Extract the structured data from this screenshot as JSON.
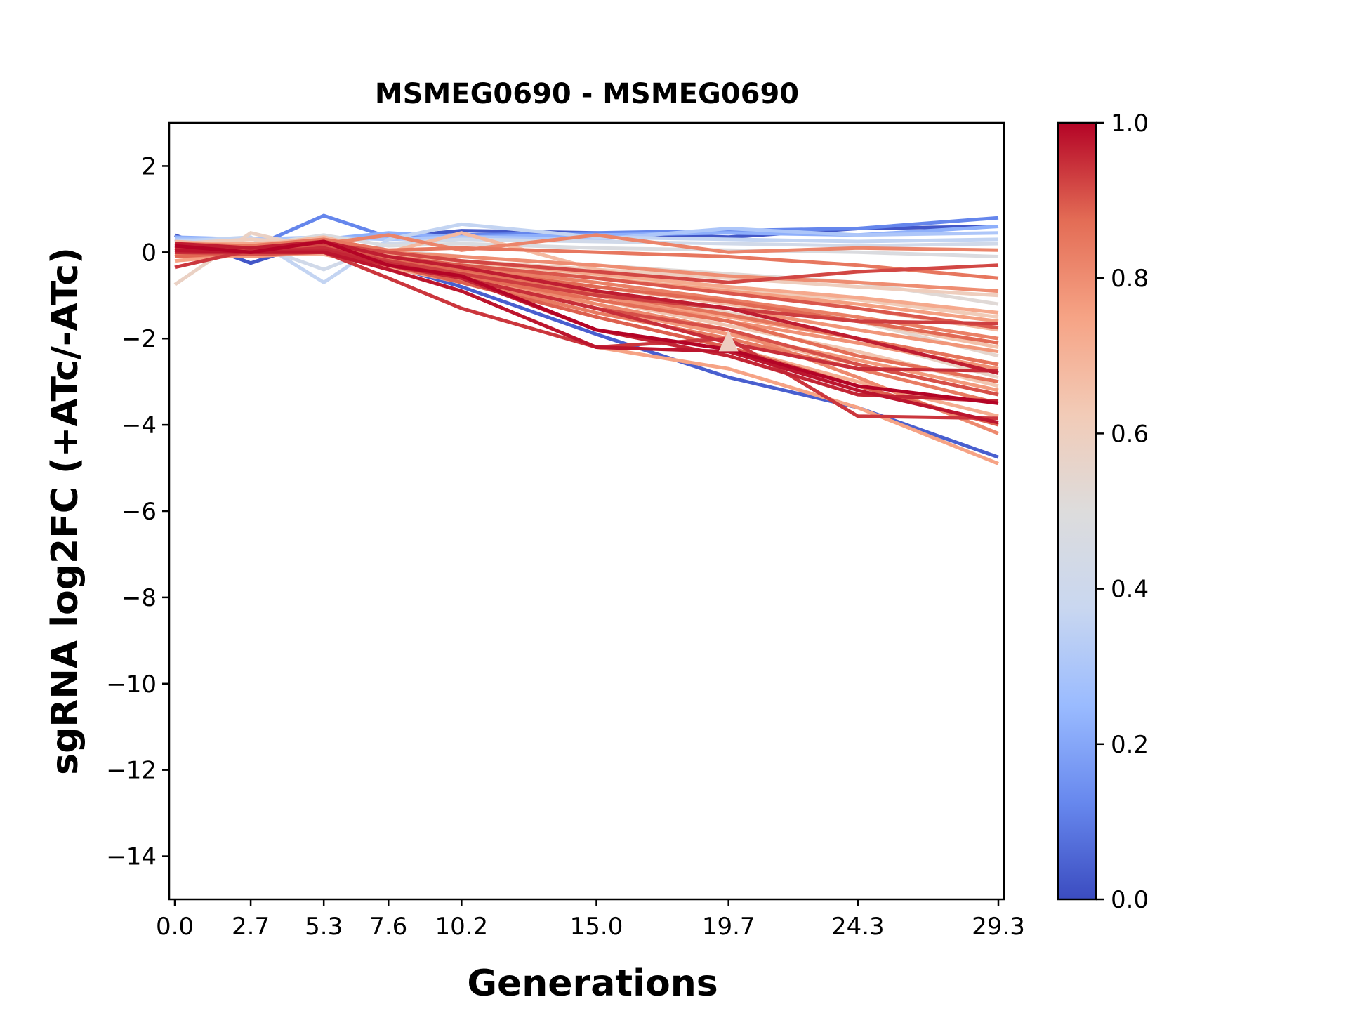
{
  "chart_data": {
    "type": "line",
    "title": "MSMEG0690 - MSMEG0690",
    "xlabel": "Generations",
    "ylabel": "sgRNA log2FC (+ATc/-ATc)",
    "x": [
      0.0,
      2.7,
      5.3,
      7.6,
      10.2,
      15.0,
      19.7,
      24.3,
      29.3
    ],
    "x_tick_labels": [
      "0.0",
      "2.7",
      "5.3",
      "7.6",
      "10.2",
      "15.0",
      "19.7",
      "24.3",
      "29.3"
    ],
    "xlim": [
      -0.2,
      29.5
    ],
    "ylim": [
      -15,
      3
    ],
    "y_ticks": [
      2,
      0,
      -2,
      -4,
      -6,
      -8,
      -10,
      -12,
      -14
    ],
    "y_tick_labels": [
      "2",
      "0",
      "−2",
      "−4",
      "−6",
      "−8",
      "−10",
      "−12",
      "−14"
    ],
    "grid": false,
    "colorbar": {
      "colormap": "coolwarm",
      "range": [
        0.0,
        1.0
      ],
      "tick_values": [
        0.0,
        0.2,
        0.4,
        0.6,
        0.8,
        1.0
      ],
      "tick_labels": [
        "0.0",
        "0.2",
        "0.4",
        "0.6",
        "0.8",
        "1.0"
      ],
      "stops": [
        "#3b4cc0",
        "#6788ee",
        "#9abbff",
        "#c9d7f0",
        "#dddcdc",
        "#f2cbb7",
        "#f6a385",
        "#e36c55",
        "#b40426"
      ]
    },
    "marker": {
      "shape": "triangle",
      "x": 19.7,
      "y": -2.1,
      "color": "#edcdc0"
    },
    "series": [
      {
        "color_value": 0.02,
        "values": [
          0.4,
          -0.25,
          0.3,
          0.35,
          0.5,
          0.45,
          0.35,
          0.55,
          0.6
        ]
      },
      {
        "color_value": 0.04,
        "values": [
          0.3,
          0.1,
          0.0,
          -0.3,
          -0.8,
          -1.9,
          -2.9,
          -3.6,
          -4.75
        ]
      },
      {
        "color_value": 0.12,
        "values": [
          0.2,
          0.1,
          0.85,
          0.35,
          0.4,
          0.45,
          0.5,
          0.55,
          0.8
        ]
      },
      {
        "color_value": 0.22,
        "values": [
          0.35,
          0.3,
          0.3,
          0.45,
          0.35,
          0.4,
          0.45,
          0.4,
          0.6
        ]
      },
      {
        "color_value": 0.3,
        "values": [
          0.3,
          0.3,
          0.35,
          0.3,
          0.35,
          0.3,
          0.55,
          0.4,
          0.45
        ]
      },
      {
        "color_value": 0.36,
        "values": [
          0.25,
          0.35,
          -0.7,
          0.3,
          0.65,
          0.35,
          0.3,
          0.25,
          0.3
        ]
      },
      {
        "color_value": 0.42,
        "values": [
          0.15,
          0.2,
          -0.4,
          0.2,
          0.3,
          0.25,
          0.2,
          0.15,
          0.2
        ]
      },
      {
        "color_value": 0.48,
        "values": [
          0.1,
          0.15,
          0.4,
          0.15,
          0.2,
          0.1,
          0.05,
          0.0,
          -0.1
        ]
      },
      {
        "color_value": 0.52,
        "values": [
          0.05,
          0.1,
          0.2,
          0.05,
          -0.1,
          -0.3,
          -0.5,
          -0.7,
          -1.2
        ]
      },
      {
        "color_value": 0.55,
        "values": [
          0.0,
          0.1,
          0.1,
          -0.1,
          -0.3,
          -0.7,
          -1.1,
          -1.6,
          -2.4
        ]
      },
      {
        "color_value": 0.58,
        "values": [
          -0.75,
          0.45,
          0.05,
          -0.2,
          -0.4,
          -0.9,
          -1.4,
          -2.0,
          -2.9
        ]
      },
      {
        "color_value": 0.6,
        "values": [
          0.2,
          0.3,
          0.2,
          0.0,
          -0.2,
          -0.4,
          -0.6,
          -0.8,
          -1.0
        ]
      },
      {
        "color_value": 0.62,
        "values": [
          0.1,
          0.05,
          0.1,
          -0.05,
          -0.25,
          -0.55,
          -0.85,
          -1.1,
          -1.5
        ]
      },
      {
        "color_value": 0.64,
        "values": [
          0.15,
          0.1,
          0.0,
          -0.2,
          -0.5,
          -1.1,
          -1.7,
          -2.3,
          -3.1
        ]
      },
      {
        "color_value": 0.66,
        "values": [
          0.05,
          0.0,
          0.05,
          -0.1,
          -0.35,
          -0.8,
          -1.2,
          -1.6,
          -2.2
        ]
      },
      {
        "color_value": 0.68,
        "values": [
          0.25,
          0.15,
          0.35,
          0.0,
          0.45,
          -0.4,
          -0.9,
          -1.3,
          -1.8
        ]
      },
      {
        "color_value": 0.7,
        "values": [
          0.0,
          0.05,
          0.0,
          -0.3,
          -0.6,
          -1.2,
          -1.9,
          -2.6,
          -3.3
        ]
      },
      {
        "color_value": 0.72,
        "values": [
          -0.1,
          0.0,
          -0.05,
          -0.35,
          -0.7,
          -1.5,
          -2.2,
          -3.0,
          -3.8
        ]
      },
      {
        "color_value": 0.73,
        "values": [
          0.2,
          0.2,
          0.25,
          -0.05,
          -0.2,
          -0.5,
          -0.8,
          -1.05,
          -1.4
        ]
      },
      {
        "color_value": 0.74,
        "values": [
          0.1,
          0.0,
          0.1,
          -0.2,
          -0.5,
          -1.0,
          -1.5,
          -2.0,
          -2.6
        ]
      },
      {
        "color_value": 0.75,
        "values": [
          -0.2,
          -0.05,
          0.0,
          -0.4,
          -0.9,
          -2.2,
          -2.7,
          -3.6,
          -4.9
        ]
      },
      {
        "color_value": 0.76,
        "values": [
          0.05,
          0.05,
          0.15,
          -0.1,
          -0.3,
          -0.6,
          -0.9,
          -1.2,
          -1.6
        ]
      },
      {
        "color_value": 0.77,
        "values": [
          0.0,
          -0.1,
          0.0,
          -0.25,
          -0.55,
          -1.3,
          -1.9,
          -2.5,
          -3.2
        ]
      },
      {
        "color_value": 0.78,
        "values": [
          0.15,
          0.1,
          0.05,
          -0.15,
          -0.4,
          -0.9,
          -1.3,
          -1.8,
          -2.3
        ]
      },
      {
        "color_value": 0.79,
        "values": [
          -0.1,
          -0.05,
          0.05,
          -0.3,
          -0.6,
          -1.0,
          -1.6,
          -2.1,
          -2.7
        ]
      },
      {
        "color_value": 0.8,
        "values": [
          0.1,
          0.05,
          0.2,
          0.0,
          -0.1,
          -0.3,
          -0.55,
          -0.7,
          -0.9
        ]
      },
      {
        "color_value": 0.81,
        "values": [
          0.0,
          0.0,
          0.0,
          -0.2,
          -0.5,
          -1.2,
          -1.8,
          -2.9,
          -4.2
        ]
      },
      {
        "color_value": 0.82,
        "values": [
          0.05,
          0.1,
          0.2,
          0.4,
          0.05,
          0.4,
          0.0,
          0.1,
          0.05
        ]
      },
      {
        "color_value": 0.83,
        "values": [
          0.1,
          0.05,
          0.1,
          -0.15,
          -0.35,
          -0.7,
          -1.1,
          -1.5,
          -2.0
        ]
      },
      {
        "color_value": 0.84,
        "values": [
          -0.05,
          0.0,
          0.0,
          -0.3,
          -0.65,
          -1.4,
          -2.0,
          -2.7,
          -3.5
        ]
      },
      {
        "color_value": 0.85,
        "values": [
          0.2,
          0.15,
          0.3,
          0.05,
          0.1,
          0.0,
          -0.1,
          -0.3,
          -0.6
        ]
      },
      {
        "color_value": 0.86,
        "values": [
          0.0,
          0.05,
          0.1,
          -0.2,
          -0.45,
          -0.95,
          -1.45,
          -2.0,
          -2.6
        ]
      },
      {
        "color_value": 0.87,
        "values": [
          0.1,
          0.0,
          0.05,
          -0.25,
          -0.55,
          -1.1,
          -1.6,
          -2.4,
          -3.0
        ]
      },
      {
        "color_value": 0.88,
        "values": [
          -0.1,
          0.0,
          0.1,
          -0.2,
          -0.4,
          -0.8,
          -1.15,
          -1.6,
          -2.1
        ]
      },
      {
        "color_value": 0.89,
        "values": [
          0.05,
          0.0,
          0.0,
          -0.3,
          -0.7,
          -1.5,
          -2.2,
          -3.1,
          -4.0
        ]
      },
      {
        "color_value": 0.9,
        "values": [
          0.1,
          0.05,
          0.15,
          -0.1,
          -0.3,
          -0.6,
          -0.95,
          -1.3,
          -1.75
        ]
      },
      {
        "color_value": 0.91,
        "values": [
          0.0,
          -0.05,
          0.0,
          -0.3,
          -0.6,
          -1.3,
          -1.8,
          -2.6,
          -3.3
        ]
      },
      {
        "color_value": 0.92,
        "values": [
          0.15,
          0.1,
          0.2,
          0.0,
          -0.2,
          -0.45,
          -0.7,
          -0.45,
          -0.3
        ]
      },
      {
        "color_value": 0.93,
        "values": [
          0.05,
          0.0,
          0.1,
          -0.2,
          -0.5,
          -1.0,
          -1.3,
          -1.6,
          -1.65
        ]
      },
      {
        "color_value": 0.94,
        "values": [
          -0.35,
          0.05,
          0.0,
          -0.6,
          -1.3,
          -2.2,
          -2.0,
          -3.8,
          -3.85
        ]
      },
      {
        "color_value": 0.95,
        "values": [
          0.1,
          0.0,
          0.1,
          -0.25,
          -0.6,
          -1.3,
          -2.1,
          -2.7,
          -2.75
        ]
      },
      {
        "color_value": 0.96,
        "values": [
          0.0,
          0.0,
          0.05,
          -0.3,
          -0.6,
          -1.8,
          -2.4,
          -3.3,
          -3.45
        ]
      },
      {
        "color_value": 0.97,
        "values": [
          0.2,
          0.1,
          0.25,
          -0.1,
          -0.35,
          -0.9,
          -1.3,
          -2.0,
          -2.8
        ]
      },
      {
        "color_value": 0.98,
        "values": [
          0.05,
          0.0,
          0.0,
          -0.4,
          -0.9,
          -2.2,
          -2.3,
          -3.2,
          -3.95
        ]
      },
      {
        "color_value": 1.0,
        "values": [
          0.15,
          0.0,
          0.25,
          -0.3,
          -0.55,
          -1.8,
          -2.25,
          -3.1,
          -3.5
        ]
      }
    ]
  }
}
